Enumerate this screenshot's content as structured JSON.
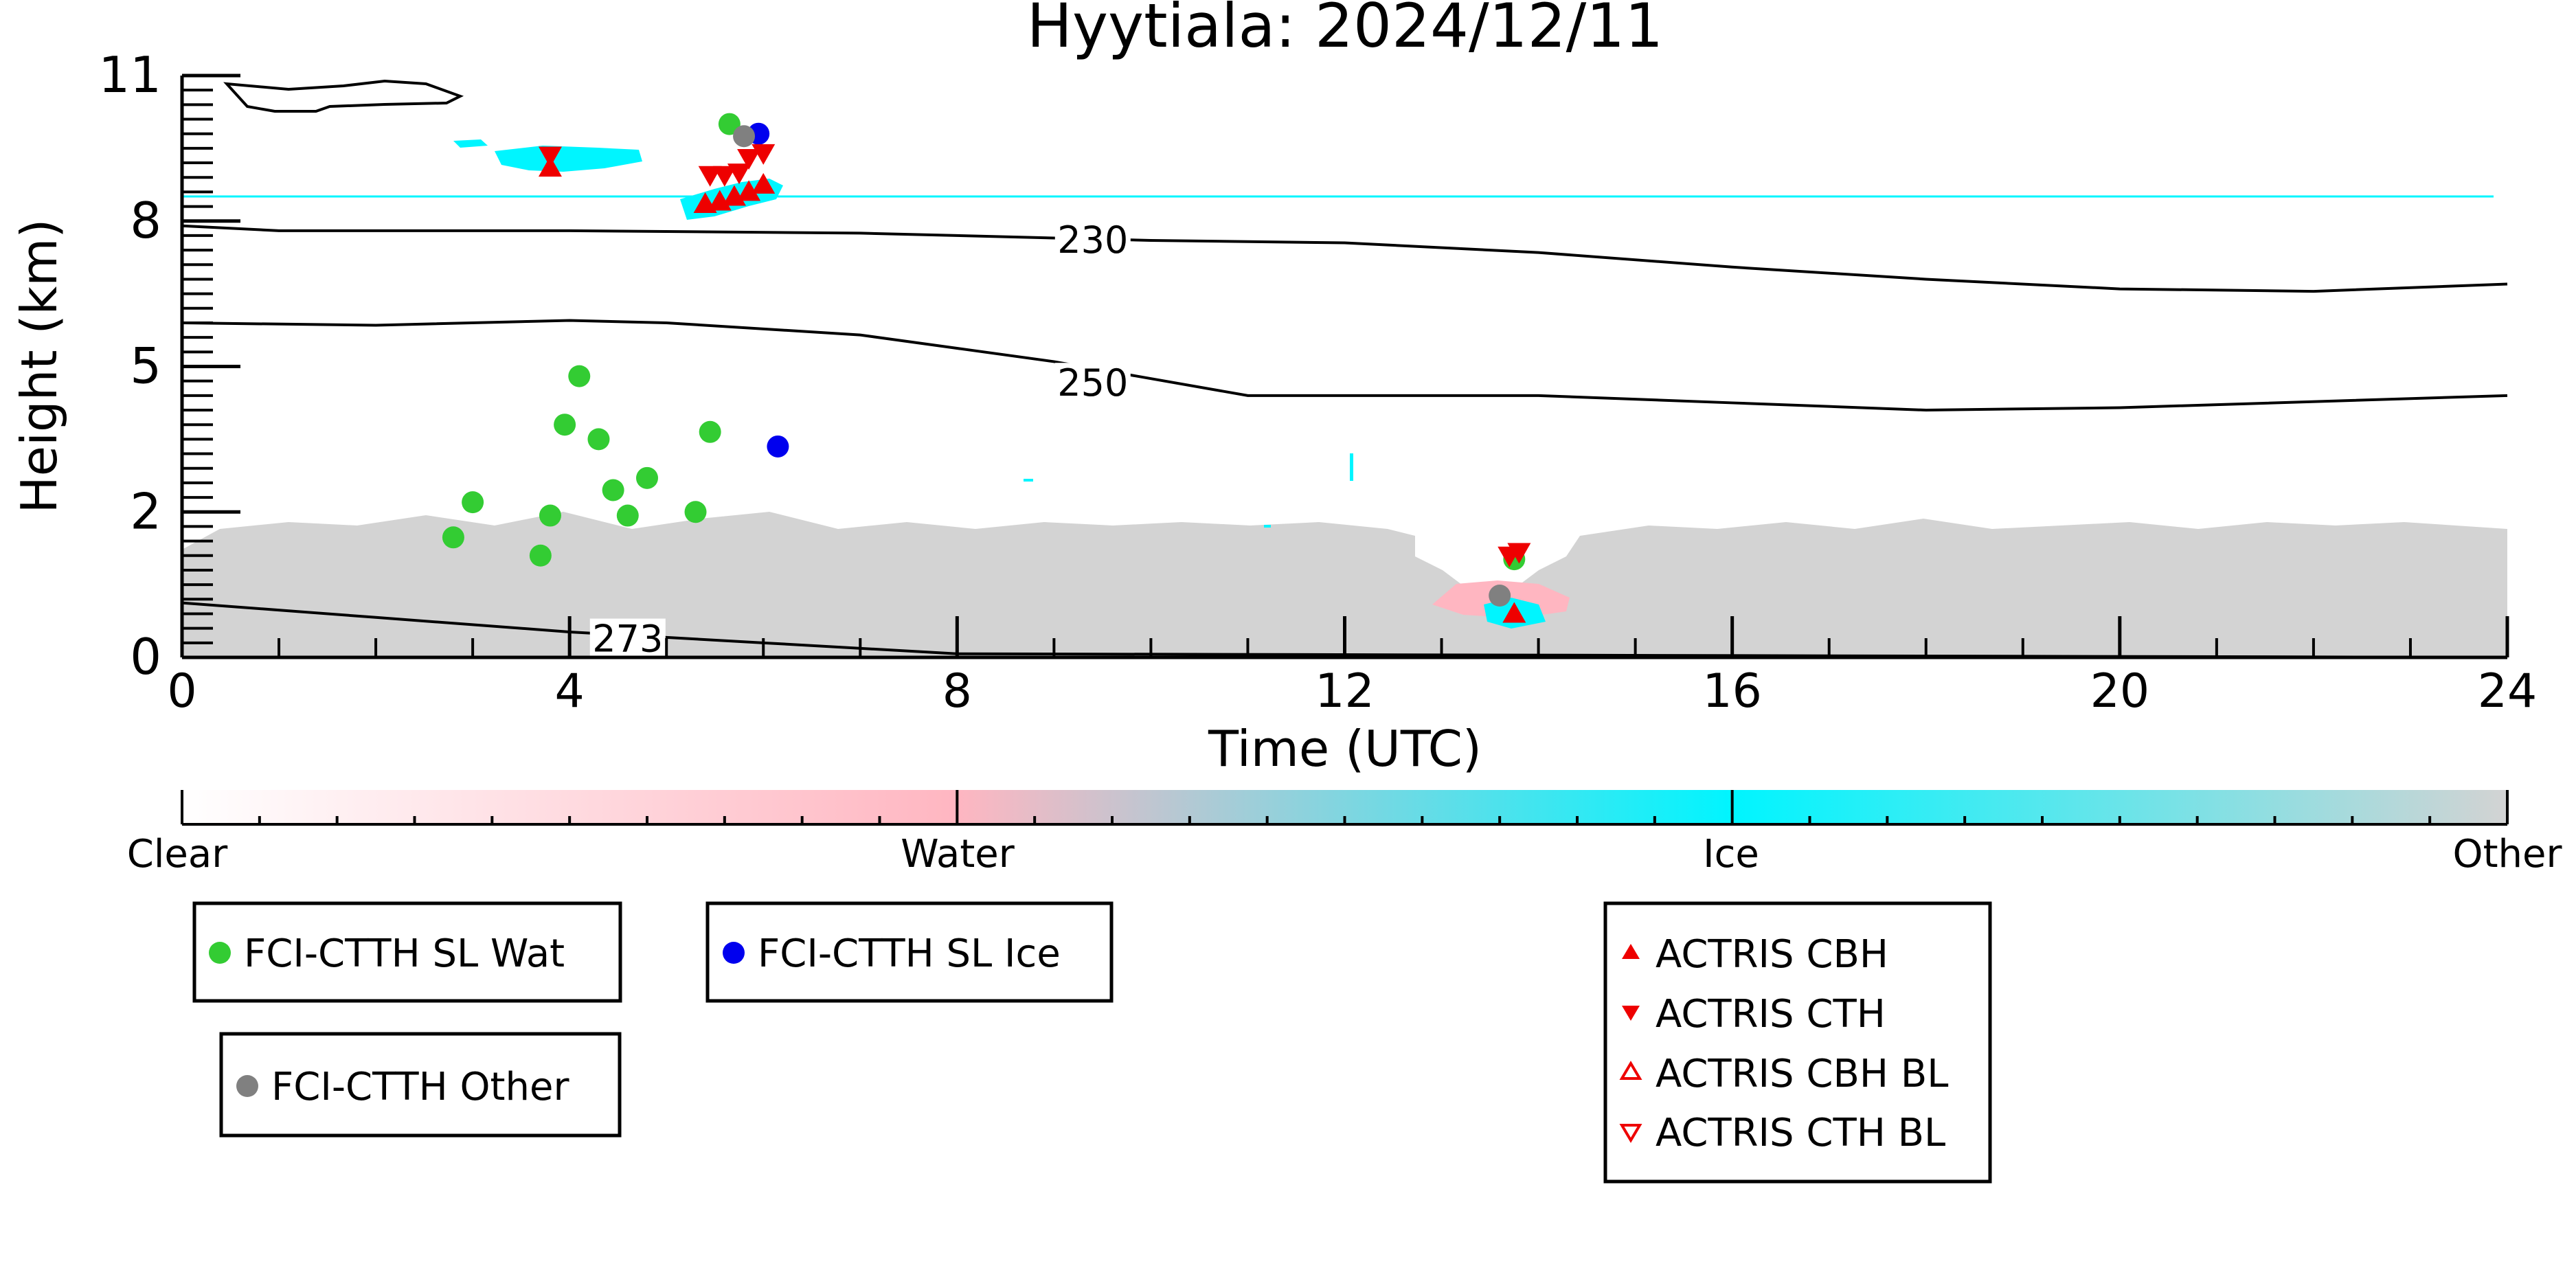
{
  "chart_data": {
    "type": "scatter",
    "title": "Hyytiala: 2024/12/11",
    "xlabel": "Time (UTC)",
    "ylabel": "Height (km)",
    "xlim": [
      0,
      24
    ],
    "ylim": [
      0,
      11
    ],
    "x_ticks": [
      0,
      4,
      8,
      12,
      16,
      20,
      24
    ],
    "y_ticks": [
      0,
      2,
      5,
      8,
      11
    ],
    "y_tick_labels": [
      "0",
      "2",
      "5",
      "8",
      "11"
    ],
    "grid": false,
    "colorbar": {
      "labels": [
        "Clear",
        "Water",
        "Ice",
        "Other"
      ],
      "colors": [
        "#ffffff",
        "#ffb6c1",
        "#00f5ff",
        "#d3d3d3"
      ]
    },
    "temperature_contours": [
      {
        "label": "230",
        "x": [
          0,
          1,
          4,
          7,
          10,
          12,
          14,
          16,
          18,
          20,
          22,
          24
        ],
        "y": [
          7.9,
          7.8,
          7.8,
          7.75,
          7.6,
          7.55,
          7.35,
          7.05,
          6.8,
          6.6,
          6.55,
          6.7
        ]
      },
      {
        "label": "250",
        "x": [
          0,
          2,
          4,
          5,
          7,
          9,
          11,
          14,
          16,
          18,
          20,
          24
        ],
        "y": [
          5.9,
          5.85,
          5.95,
          5.9,
          5.65,
          5.1,
          4.4,
          4.4,
          4.25,
          4.1,
          4.15,
          4.4
        ]
      },
      {
        "label": "273",
        "x": [
          0,
          2,
          4,
          6,
          8,
          24
        ],
        "y": [
          0.75,
          0.55,
          0.35,
          0.2,
          0.05,
          0.0
        ]
      }
    ],
    "contour_labels": [
      {
        "text": "230",
        "x": 9.4,
        "y": 7.6
      },
      {
        "text": "250",
        "x": 9.4,
        "y": 4.65
      },
      {
        "text": "273",
        "x": 4.6,
        "y": 0.25
      }
    ],
    "series": [
      {
        "name": "FCI-CTTH SL Wat",
        "color": "#33cc33",
        "marker": "circle",
        "x": [
          2.8,
          3.0,
          3.7,
          3.8,
          3.95,
          4.1,
          4.3,
          4.45,
          4.6,
          4.8,
          5.3,
          5.45,
          5.65,
          13.75
        ],
        "y": [
          1.65,
          2.2,
          1.4,
          1.95,
          3.8,
          4.8,
          3.5,
          2.45,
          1.95,
          2.7,
          2.0,
          3.65,
          10.0,
          1.35
        ]
      },
      {
        "name": "FCI-CTTH SL Ice",
        "color": "#0000ee",
        "marker": "circle",
        "x": [
          5.95,
          6.15
        ],
        "y": [
          9.8,
          3.35
        ]
      },
      {
        "name": "FCI-CTTH Other",
        "color": "#808080",
        "marker": "circle",
        "x": [
          5.8,
          13.6
        ],
        "y": [
          9.75,
          0.85
        ]
      },
      {
        "name": "ACTRIS CBH",
        "color": "#ee0000",
        "marker": "triangle-up",
        "x": [
          3.8,
          5.4,
          5.55,
          5.7,
          5.85,
          6.0,
          13.75
        ],
        "y": [
          9.1,
          8.35,
          8.4,
          8.5,
          8.6,
          8.75,
          0.6
        ]
      },
      {
        "name": "ACTRIS CTH",
        "color": "#ee0000",
        "marker": "triangle-down",
        "x": [
          3.8,
          5.45,
          5.6,
          5.75,
          5.85,
          6.0,
          13.7,
          13.8
        ],
        "y": [
          9.35,
          8.95,
          8.95,
          9.0,
          9.3,
          9.4,
          1.4,
          1.45
        ]
      },
      {
        "name": "ACTRIS CBH BL",
        "color": "#ee0000",
        "marker": "triangle-up-open",
        "x": [],
        "y": []
      },
      {
        "name": "ACTRIS CTH BL",
        "color": "#ee0000",
        "marker": "triangle-down-open",
        "x": [],
        "y": []
      }
    ],
    "legends": [
      {
        "entries": [
          "FCI-CTTH SL Wat"
        ]
      },
      {
        "entries": [
          "FCI-CTTH SL Ice"
        ]
      },
      {
        "entries": [
          "FCI-CTTH Other"
        ]
      },
      {
        "entries": [
          "ACTRIS CBH",
          "ACTRIS CTH",
          "ACTRIS CBH BL",
          "ACTRIS CTH BL"
        ]
      }
    ]
  }
}
